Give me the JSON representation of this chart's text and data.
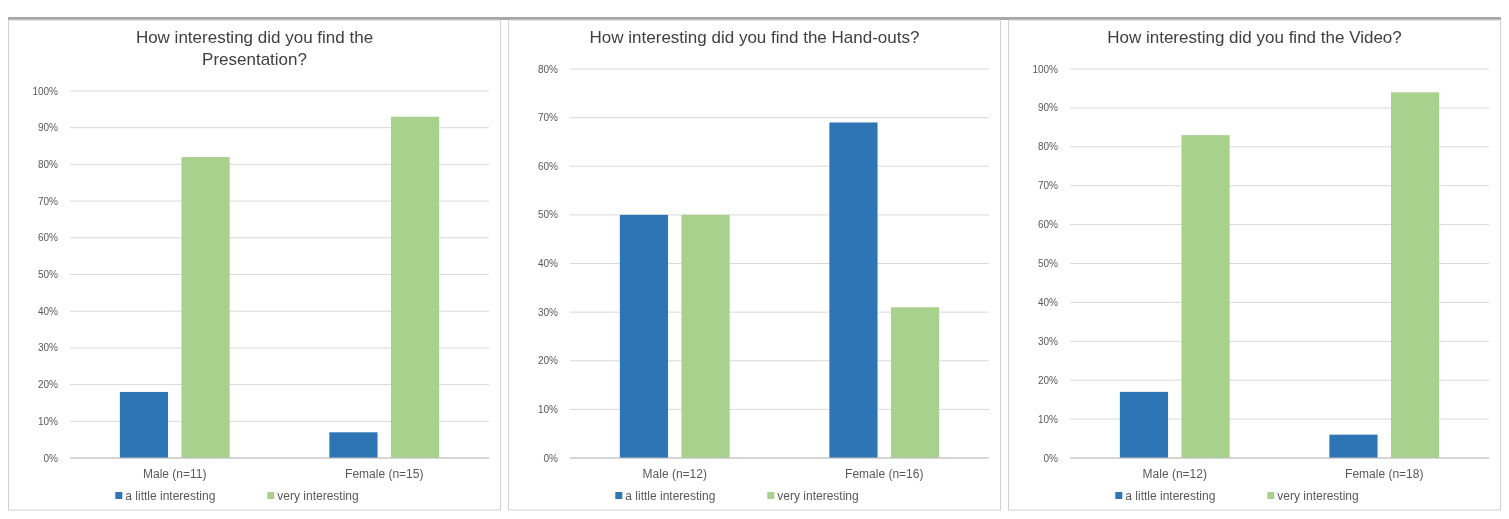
{
  "chart_data": [
    {
      "type": "bar",
      "title": "How interesting did you find the Presentation?",
      "categories": [
        "Male (n=11)",
        "Female (n=15)"
      ],
      "series": [
        {
          "name": "a little interesting",
          "color": "#2e75b6",
          "values": [
            18,
            7
          ]
        },
        {
          "name": "very interesting",
          "color": "#a9d18e",
          "values": [
            82,
            93
          ]
        }
      ],
      "ylim": [
        0,
        100
      ],
      "yticks": [
        {
          "value": 0,
          "label": "0%"
        },
        {
          "value": 10,
          "label": "10%"
        },
        {
          "value": 20,
          "label": "20%"
        },
        {
          "value": 30,
          "label": "30%"
        },
        {
          "value": 40,
          "label": "40%"
        },
        {
          "value": 50,
          "label": "50%"
        },
        {
          "value": 60,
          "label": "60%"
        },
        {
          "value": 70,
          "label": "70%"
        },
        {
          "value": 80,
          "label": "80%"
        },
        {
          "value": 90,
          "label": "90%"
        },
        {
          "value": 100,
          "label": "100%"
        }
      ],
      "grid": "y",
      "legend": "bottom"
    },
    {
      "type": "bar",
      "title": "How interesting did you find the Hand-outs?",
      "categories": [
        "Male (n=12)",
        "Female (n=16)"
      ],
      "series": [
        {
          "name": "a little interesting",
          "color": "#2e75b6",
          "values": [
            50,
            69
          ]
        },
        {
          "name": "very interesting",
          "color": "#a9d18e",
          "values": [
            50,
            31
          ]
        }
      ],
      "ylim": [
        0,
        80
      ],
      "yticks": [
        {
          "value": 0,
          "label": "0%"
        },
        {
          "value": 10,
          "label": "10%"
        },
        {
          "value": 20,
          "label": "20%"
        },
        {
          "value": 30,
          "label": "30%"
        },
        {
          "value": 40,
          "label": "40%"
        },
        {
          "value": 50,
          "label": "50%"
        },
        {
          "value": 60,
          "label": "60%"
        },
        {
          "value": 70,
          "label": "70%"
        },
        {
          "value": 80,
          "label": "80%"
        }
      ],
      "grid": "y",
      "legend": "bottom"
    },
    {
      "type": "bar",
      "title": "How interesting did you find the Video?",
      "categories": [
        "Male (n=12)",
        "Female (n=18)"
      ],
      "series": [
        {
          "name": "a little interesting",
          "color": "#2e75b6",
          "values": [
            17,
            6
          ]
        },
        {
          "name": "very interesting",
          "color": "#a9d18e",
          "values": [
            83,
            94
          ]
        }
      ],
      "ylim": [
        0,
        100
      ],
      "yticks": [
        {
          "value": 0,
          "label": "0%"
        },
        {
          "value": 10,
          "label": "10%"
        },
        {
          "value": 20,
          "label": "20%"
        },
        {
          "value": 30,
          "label": "30%"
        },
        {
          "value": 40,
          "label": "40%"
        },
        {
          "value": 50,
          "label": "50%"
        },
        {
          "value": 60,
          "label": "60%"
        },
        {
          "value": 70,
          "label": "70%"
        },
        {
          "value": 80,
          "label": "80%"
        },
        {
          "value": 90,
          "label": "90%"
        },
        {
          "value": 100,
          "label": "100%"
        }
      ],
      "grid": "y",
      "legend": "bottom"
    }
  ]
}
